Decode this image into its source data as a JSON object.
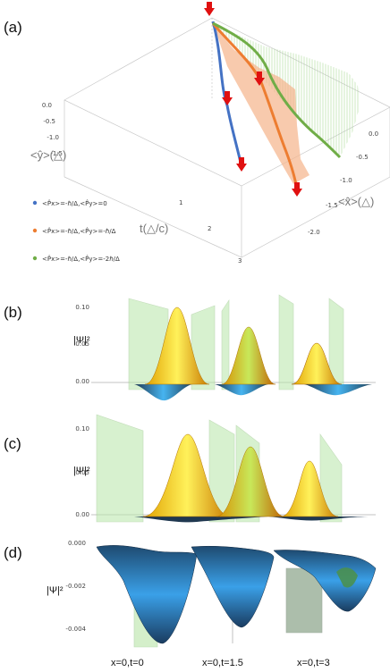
{
  "panel_labels": {
    "a": "(a)",
    "b": "(b)",
    "c": "(c)",
    "d": "(d)"
  },
  "panel_a": {
    "y_axis_label": "<ŷ>(△)",
    "x_axis_label": "<x̂>(△)",
    "t_axis_label": "t(△/c)",
    "y_ticks": [
      "0.0",
      "-0.5",
      "-1.0",
      "-1.5"
    ],
    "x_ticks": [
      "0.0",
      "-0.5",
      "-1.0",
      "-1.5",
      "-2.0"
    ],
    "t_ticks": [
      "1",
      "2",
      "3"
    ],
    "legend": [
      {
        "text": "<P̂x>=-ℏ/Δ,<P̂y>=0",
        "color": "#4472c4"
      },
      {
        "text": "<P̂x>=-ℏ/Δ,<P̂y>=-ℏ/Δ",
        "color": "#ed7d31"
      },
      {
        "text": "<P̂x>=-ℏ/Δ,<P̂y>=-2ℏ/Δ",
        "color": "#70ad47"
      }
    ]
  },
  "panel_b": {
    "y_label": "|Ψ|²",
    "y_ticks": [
      "0.10",
      "0.05",
      "0.00"
    ]
  },
  "panel_c": {
    "y_label": "|Ψ|²",
    "y_ticks": [
      "0.10",
      "0.05",
      "0.00"
    ]
  },
  "panel_d": {
    "y_label": "|Ψ|²",
    "y_ticks": [
      "0.000",
      "-0.002",
      "-0.004"
    ],
    "captions": [
      "x=0,t=0",
      "x=0,t=1.5",
      "x=0,t=3"
    ]
  },
  "colors": {
    "blue": "#4472c4",
    "orange": "#ed7d31",
    "green": "#70ad47",
    "arrow": "#e01010",
    "plane": "#b8e6a8"
  }
}
